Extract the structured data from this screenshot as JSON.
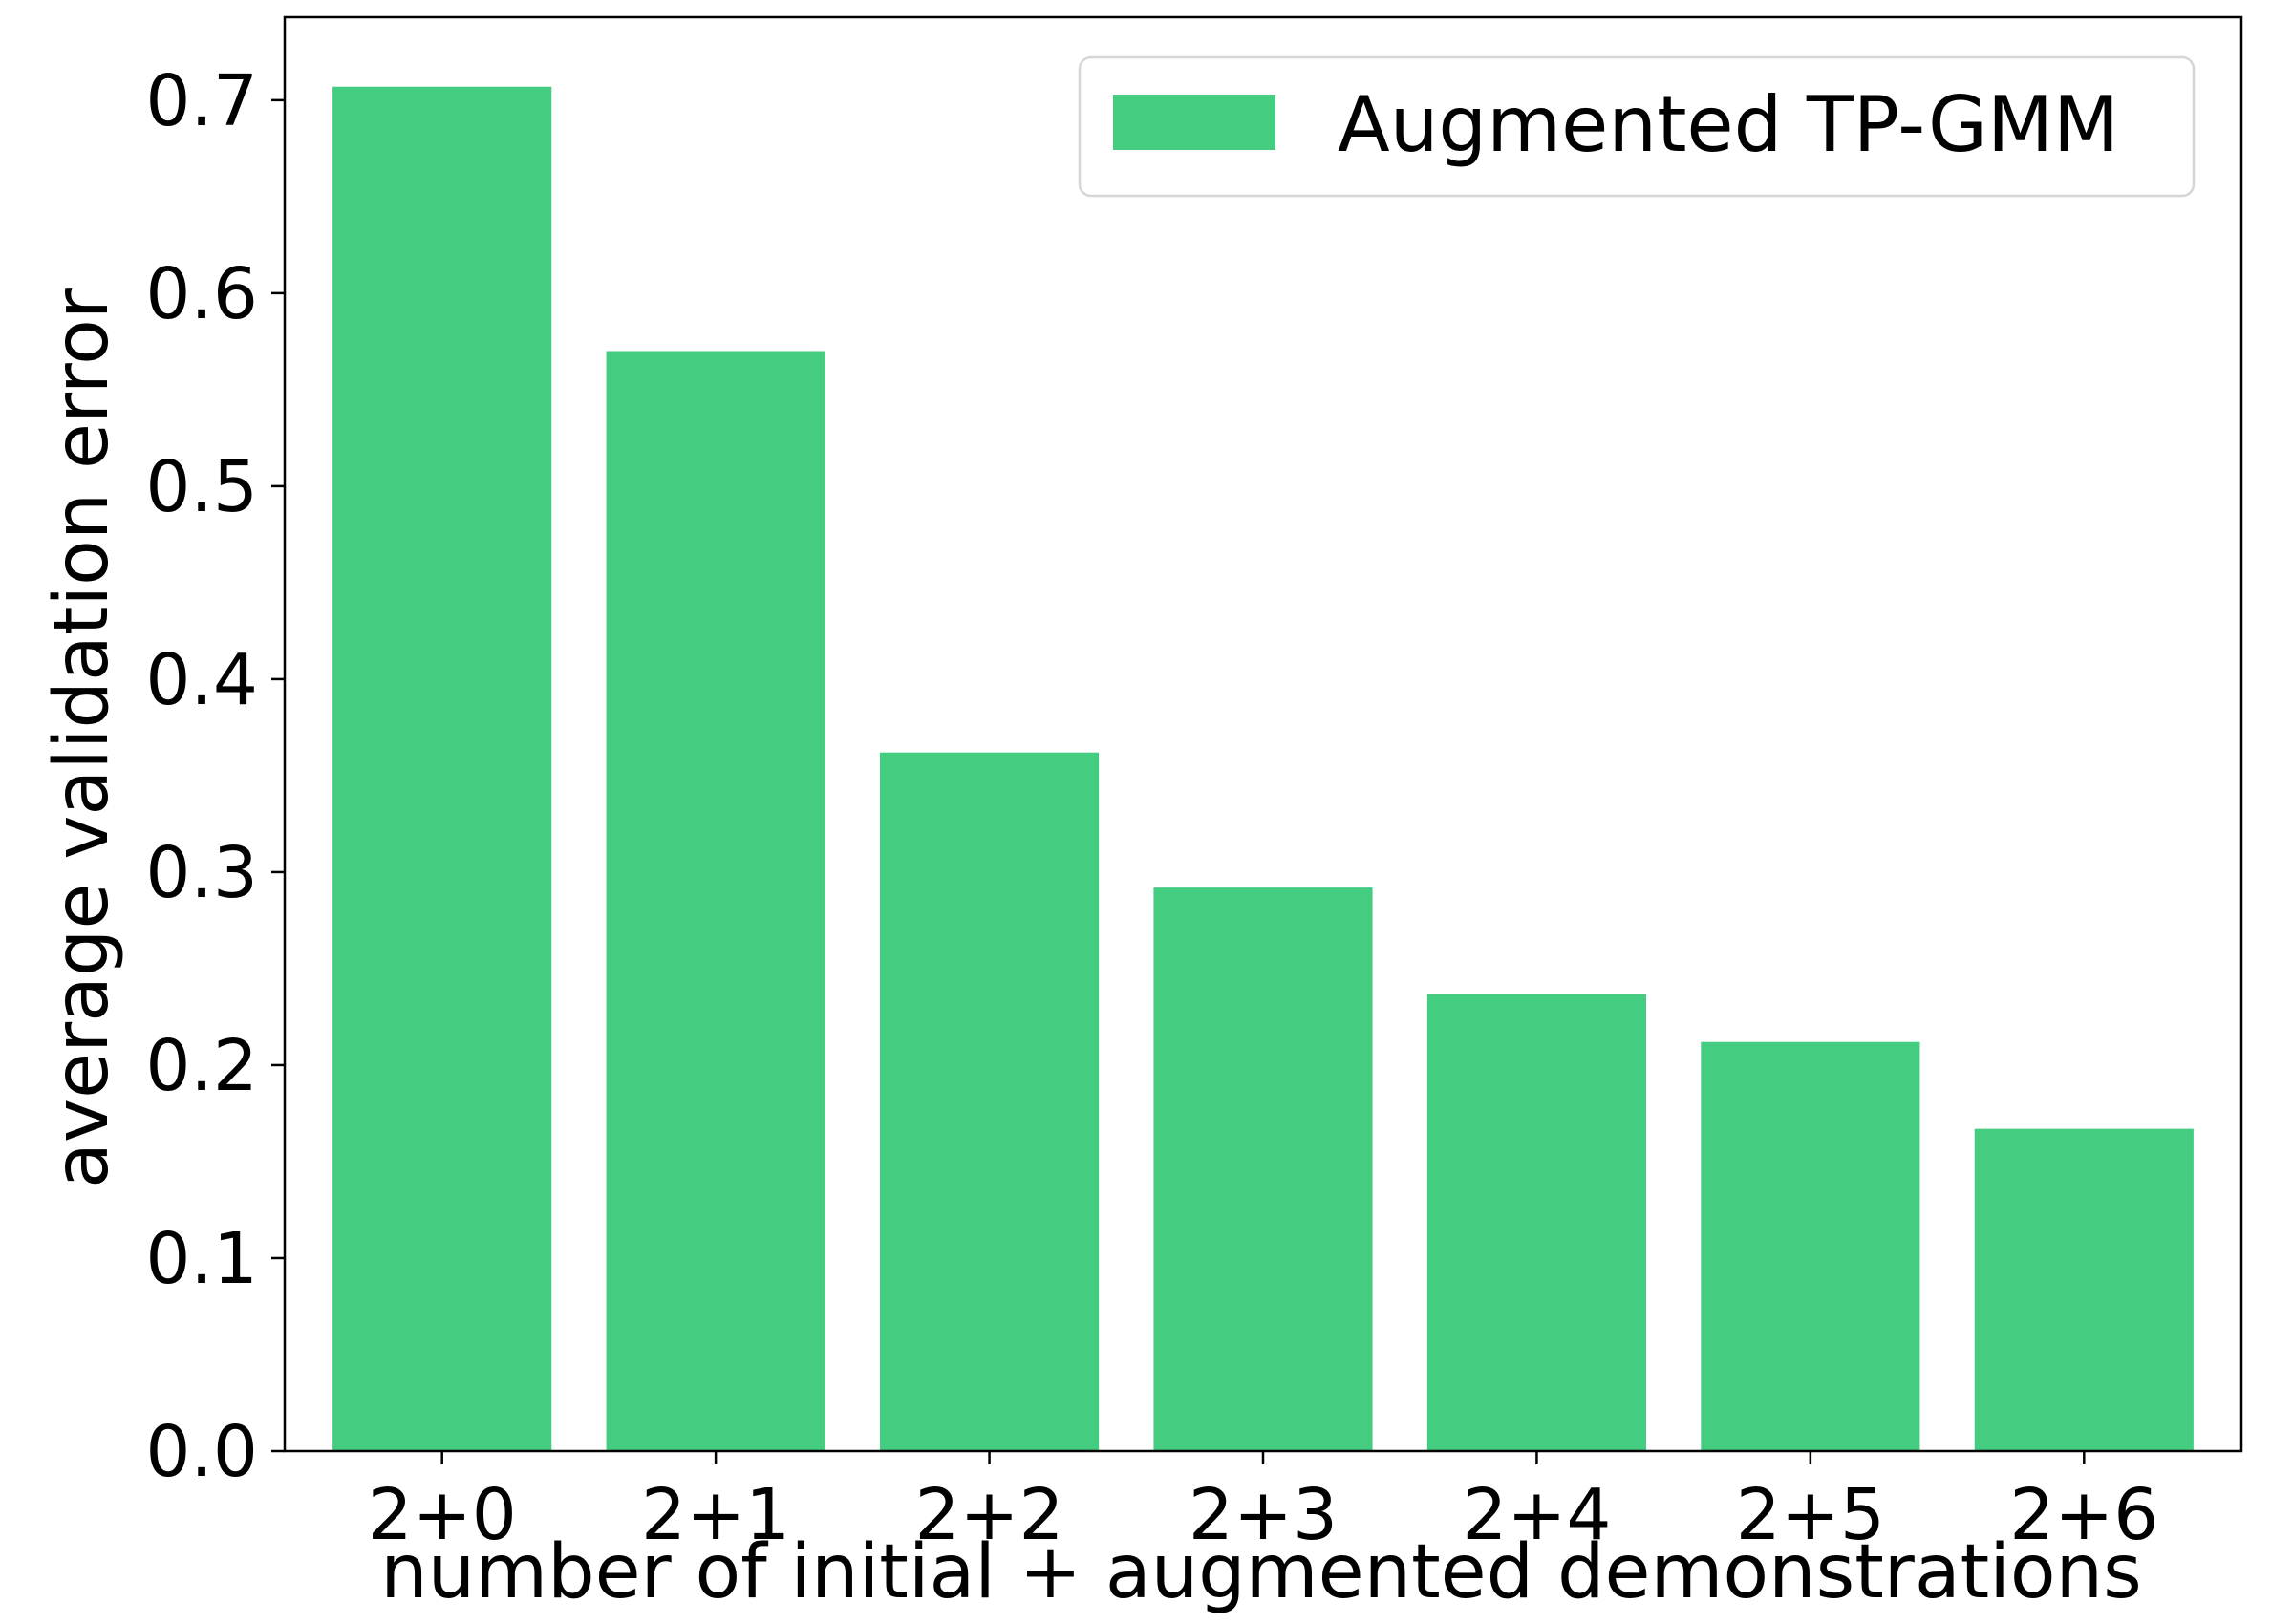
{
  "chart_data": {
    "type": "bar",
    "categories": [
      "2+0",
      "2+1",
      "2+2",
      "2+3",
      "2+4",
      "2+5",
      "2+6"
    ],
    "series": [
      {
        "name": "Augmented TP-GMM",
        "color": "#44cc80",
        "values": [
          0.707,
          0.57,
          0.362,
          0.292,
          0.237,
          0.212,
          0.167
        ]
      }
    ],
    "xlabel": "number of initial + augmented demonstrations",
    "ylabel": "average validation error",
    "ylim": [
      0.0,
      0.743
    ],
    "yticks": [
      "0.0",
      "0.1",
      "0.2",
      "0.3",
      "0.4",
      "0.5",
      "0.6",
      "0.7"
    ],
    "grid": false,
    "legend": {
      "placement": "top-right",
      "entries": [
        "Augmented TP-GMM"
      ]
    }
  }
}
